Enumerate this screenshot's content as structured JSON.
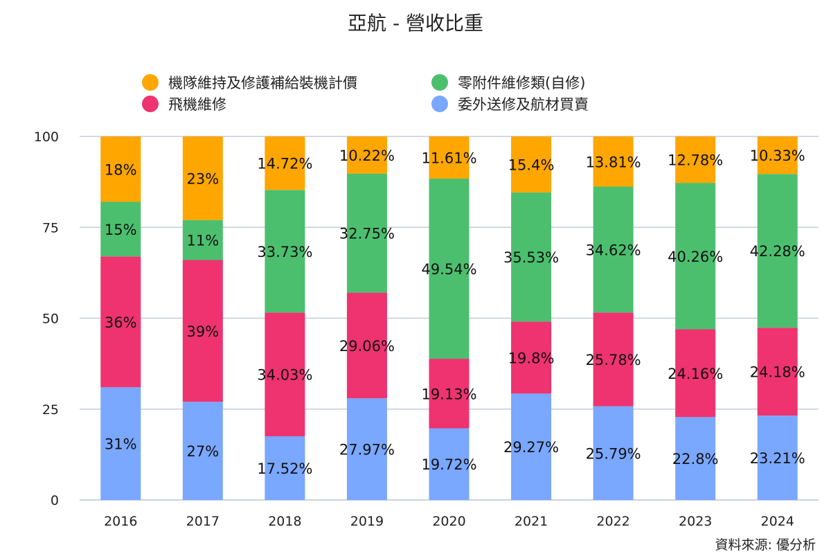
{
  "chart_data": {
    "type": "bar",
    "stacked": true,
    "title": "亞航 - 營收比重",
    "categories": [
      "2016",
      "2017",
      "2018",
      "2019",
      "2020",
      "2021",
      "2022",
      "2023",
      "2024"
    ],
    "ylim": [
      0,
      100
    ],
    "yticks": [
      0,
      25,
      50,
      75,
      100
    ],
    "grid": true,
    "legend_position": "top",
    "series": [
      {
        "name": "委外送修及航材買賣",
        "color": "#7aa7ff",
        "values": [
          31,
          27,
          17.52,
          27.97,
          19.72,
          29.27,
          25.79,
          22.8,
          23.21
        ],
        "labels": [
          "31%",
          "27%",
          "17.52%",
          "27.97%",
          "19.72%",
          "29.27%",
          "25.79%",
          "22.8%",
          "23.21%"
        ]
      },
      {
        "name": "飛機維修",
        "color": "#ee3370",
        "values": [
          36,
          39,
          34.03,
          29.06,
          19.13,
          19.8,
          25.78,
          24.16,
          24.18
        ],
        "labels": [
          "36%",
          "39%",
          "34.03%",
          "29.06%",
          "19.13%",
          "19.8%",
          "25.78%",
          "24.16%",
          "24.18%"
        ]
      },
      {
        "name": "零附件維修類(自修)",
        "color": "#4cbf6f",
        "values": [
          15,
          11,
          33.73,
          32.75,
          49.54,
          35.53,
          34.62,
          40.26,
          42.28
        ],
        "labels": [
          "15%",
          "11%",
          "33.73%",
          "32.75%",
          "49.54%",
          "35.53%",
          "34.62%",
          "40.26%",
          "42.28%"
        ]
      },
      {
        "name": "機隊維持及修護補給裝機計價",
        "color": "#ffa600",
        "values": [
          18,
          23,
          14.72,
          10.22,
          11.61,
          15.4,
          13.81,
          12.78,
          10.33
        ],
        "labels": [
          "18%",
          "23%",
          "14.72%",
          "10.22%",
          "11.61%",
          "15.4%",
          "13.81%",
          "12.78%",
          "10.33%"
        ]
      }
    ],
    "legend_order": [
      3,
      2,
      1,
      0
    ],
    "source": "資料來源: 優分析"
  }
}
